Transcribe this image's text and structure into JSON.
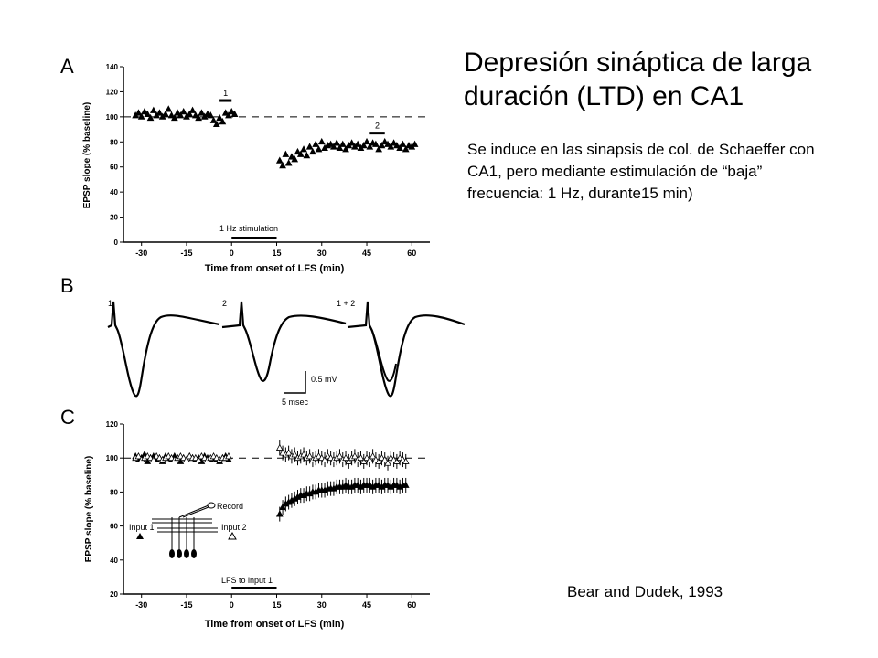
{
  "slide": {
    "title": "Depresión sináptica de larga duración (LTD) en CA1",
    "description": "Se induce en las sinapsis de col. de Schaeffer con CA1, pero mediante estimulación de “baja” frecuencia: 1 Hz, durante15 min)",
    "citation": "Bear and Dudek, 1993"
  },
  "chart_data": [
    {
      "panel": "A",
      "type": "scatter",
      "ylabel": "EPSP slope (% baseline)",
      "xlabel": "Time from onset of LFS (min)",
      "xlim": [
        -36,
        66
      ],
      "ylim": [
        0,
        140
      ],
      "xticks": [
        "-30",
        "-15",
        "0",
        "15",
        "30",
        "45",
        "60"
      ],
      "yticks": [
        "0",
        "20",
        "40",
        "60",
        "80",
        "100",
        "120",
        "140"
      ],
      "baseline": 100,
      "stim_label": "1 Hz stimulation",
      "stim_range": [
        0,
        15
      ],
      "marks": [
        {
          "label": "1",
          "x": [
            -4,
            0
          ],
          "y": 113
        },
        {
          "label": "2",
          "x": [
            46,
            51
          ],
          "y": 87
        }
      ],
      "series": [
        {
          "marker": "triangle-filled",
          "x": [
            -32,
            -31,
            -30,
            -29,
            -28,
            -27,
            -26,
            -25,
            -24,
            -23,
            -22,
            -21,
            -20,
            -19,
            -18,
            -17,
            -16,
            -15,
            -14,
            -13,
            -12,
            -11,
            -10,
            -9,
            -8,
            -7,
            -6,
            -5,
            -4,
            -3,
            -2,
            -1,
            0,
            1
          ],
          "y": [
            101,
            103,
            100,
            104,
            102,
            99,
            105,
            101,
            103,
            100,
            102,
            106,
            101,
            99,
            103,
            101,
            104,
            100,
            102,
            105,
            101,
            99,
            103,
            100,
            102,
            101,
            97,
            94,
            99,
            96,
            103,
            101,
            104,
            102
          ]
        },
        {
          "marker": "triangle-filled",
          "x": [
            16,
            17,
            18,
            19,
            20,
            21,
            22,
            23,
            24,
            25,
            26,
            27,
            28,
            29,
            30,
            31,
            32,
            33,
            34,
            35,
            36,
            37,
            38,
            39,
            40,
            41,
            42,
            43,
            44,
            45,
            46,
            47,
            48,
            49,
            50,
            51,
            52,
            53,
            54,
            55,
            56,
            57,
            58,
            59,
            60,
            61
          ],
          "y": [
            65,
            61,
            70,
            63,
            68,
            66,
            72,
            70,
            74,
            69,
            76,
            72,
            78,
            74,
            80,
            75,
            77,
            78,
            76,
            79,
            75,
            78,
            74,
            77,
            79,
            76,
            78,
            75,
            77,
            80,
            76,
            79,
            78,
            74,
            77,
            80,
            78,
            76,
            79,
            77,
            75,
            78,
            74,
            77,
            76,
            78
          ]
        }
      ]
    },
    {
      "panel": "B",
      "type": "traces",
      "labels": [
        "1",
        "2",
        "1 + 2"
      ],
      "scalebar": {
        "x_label": "5 msec",
        "y_label": "0.5 mV"
      }
    },
    {
      "panel": "C",
      "type": "scatter",
      "ylabel": "EPSP slope (% baseline)",
      "xlabel": "Time from onset of LFS (min)",
      "xlim": [
        -36,
        66
      ],
      "ylim": [
        20,
        120
      ],
      "xticks": [
        "-30",
        "-15",
        "0",
        "15",
        "30",
        "45",
        "60"
      ],
      "yticks": [
        "20",
        "40",
        "60",
        "80",
        "100",
        "120"
      ],
      "baseline": 100,
      "stim_label": "LFS to input 1",
      "stim_range": [
        0,
        15
      ],
      "inset": {
        "record": "Record",
        "input1": "Input 1",
        "input2": "Input 2"
      },
      "series": [
        {
          "marker": "triangle-filled",
          "x": [
            -32,
            -31,
            -30,
            -29,
            -28,
            -27,
            -26,
            -25,
            -24,
            -23,
            -22,
            -21,
            -20,
            -19,
            -18,
            -17,
            -16,
            -15,
            -14,
            -13,
            -12,
            -11,
            -10,
            -9,
            -8,
            -7,
            -6,
            -5,
            -4,
            -3,
            -2,
            -1,
            16,
            17,
            18,
            19,
            20,
            21,
            22,
            23,
            24,
            25,
            26,
            27,
            28,
            29,
            30,
            31,
            32,
            33,
            34,
            35,
            36,
            37,
            38,
            39,
            40,
            41,
            42,
            43,
            44,
            45,
            46,
            47,
            48,
            49,
            50,
            51,
            52,
            53,
            54,
            55,
            56,
            57,
            58
          ],
          "y": [
            101,
            99,
            100,
            102,
            98,
            100,
            101,
            99,
            100,
            98,
            101,
            100,
            99,
            101,
            100,
            98,
            100,
            99,
            101,
            100,
            99,
            100,
            98,
            101,
            100,
            99,
            100,
            99,
            98,
            100,
            101,
            99,
            67,
            71,
            73,
            74,
            75,
            76,
            77,
            78,
            78,
            79,
            79,
            80,
            80,
            81,
            81,
            81,
            82,
            82,
            82,
            83,
            83,
            83,
            84,
            83,
            83,
            84,
            84,
            83,
            84,
            84,
            84,
            83,
            84,
            84,
            83,
            84,
            84,
            83,
            84,
            84,
            83,
            84,
            84
          ]
        },
        {
          "marker": "triangle-open",
          "x": [
            -32,
            -31,
            -30,
            -29,
            -28,
            -27,
            -26,
            -25,
            -24,
            -23,
            -22,
            -21,
            -20,
            -19,
            -18,
            -17,
            -16,
            -15,
            -14,
            -13,
            -12,
            -11,
            -10,
            -9,
            -8,
            -7,
            -6,
            -5,
            -4,
            -3,
            -2,
            -1,
            16,
            17,
            18,
            19,
            20,
            21,
            22,
            23,
            24,
            25,
            26,
            27,
            28,
            29,
            30,
            31,
            32,
            33,
            34,
            35,
            36,
            37,
            38,
            39,
            40,
            41,
            42,
            43,
            44,
            45,
            46,
            47,
            48,
            49,
            50,
            51,
            52,
            53,
            54,
            55,
            56,
            57,
            58
          ],
          "y": [
            100,
            101,
            99,
            100,
            101,
            100,
            99,
            101,
            100,
            99,
            100,
            101,
            100,
            99,
            100,
            101,
            100,
            99,
            101,
            100,
            100,
            99,
            101,
            100,
            99,
            100,
            101,
            100,
            99,
            100,
            100,
            101,
            106,
            103,
            102,
            103,
            101,
            102,
            100,
            101,
            102,
            100,
            101,
            99,
            100,
            101,
            100,
            99,
            101,
            100,
            99,
            100,
            101,
            99,
            100,
            98,
            100,
            101,
            99,
            100,
            98,
            100,
            99,
            101,
            99,
            98,
            100,
            99,
            97,
            100,
            99,
            98,
            100,
            99,
            98
          ]
        }
      ]
    }
  ]
}
